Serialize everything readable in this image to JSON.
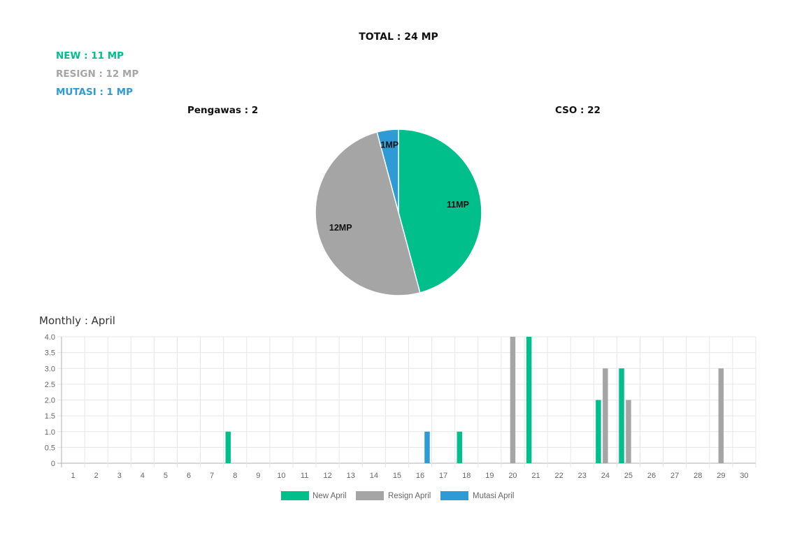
{
  "total_label": "TOTAL : 24 MP",
  "summary": [
    {
      "key": "new",
      "label": "NEW : 11 MP",
      "color": "#00bf8a"
    },
    {
      "key": "resign",
      "label": "RESIGN : 12 MP",
      "color": "#a5a5a5"
    },
    {
      "key": "mutasi",
      "label": "MUTASI : 1 MP",
      "color": "#2f9bd6"
    }
  ],
  "groups": {
    "pengawas_label": "Pengawas : 2",
    "cso_label": "CSO : 22"
  },
  "monthly_label": "Monthly : April",
  "chart_data": [
    {
      "type": "pie",
      "slices": [
        {
          "label": "11MP",
          "value": 11,
          "color": "#00bf8a"
        },
        {
          "label": "12MP",
          "value": 12,
          "color": "#a5a5a5"
        },
        {
          "label": "1MP",
          "value": 1,
          "color": "#2f9bd6"
        }
      ]
    },
    {
      "type": "bar",
      "categories": [
        "1",
        "2",
        "3",
        "4",
        "5",
        "6",
        "7",
        "8",
        "9",
        "10",
        "11",
        "12",
        "13",
        "14",
        "15",
        "16",
        "17",
        "18",
        "19",
        "20",
        "21",
        "22",
        "23",
        "24",
        "25",
        "26",
        "27",
        "28",
        "29",
        "30"
      ],
      "series": [
        {
          "name": "New April",
          "color": "#00bf8a",
          "values": [
            0,
            0,
            0,
            0,
            0,
            0,
            0,
            1,
            0,
            0,
            0,
            0,
            0,
            0,
            0,
            0,
            0,
            1,
            0,
            0,
            4,
            0,
            0,
            2,
            3,
            0,
            0,
            0,
            0,
            0
          ]
        },
        {
          "name": "Resign April",
          "color": "#a5a5a5",
          "values": [
            0,
            0,
            0,
            0,
            0,
            0,
            0,
            0,
            0,
            0,
            0,
            0,
            0,
            0,
            0,
            0,
            0,
            0,
            0,
            4,
            0,
            0,
            0,
            3,
            2,
            0,
            0,
            0,
            3,
            0
          ]
        },
        {
          "name": "Mutasi April",
          "color": "#2f9bd6",
          "values": [
            0,
            0,
            0,
            0,
            0,
            0,
            0,
            0,
            0,
            0,
            0,
            0,
            0,
            0,
            0,
            1,
            0,
            0,
            0,
            0,
            0,
            0,
            0,
            0,
            0,
            0,
            0,
            0,
            0,
            0
          ]
        }
      ],
      "y_ticks": [
        "4.0",
        "3.5",
        "3.0",
        "2.5",
        "2.0",
        "1.5",
        "1.0",
        "0.5",
        "0"
      ],
      "ylim": [
        0,
        4
      ],
      "grid": true,
      "legend_position": "bottom"
    }
  ]
}
